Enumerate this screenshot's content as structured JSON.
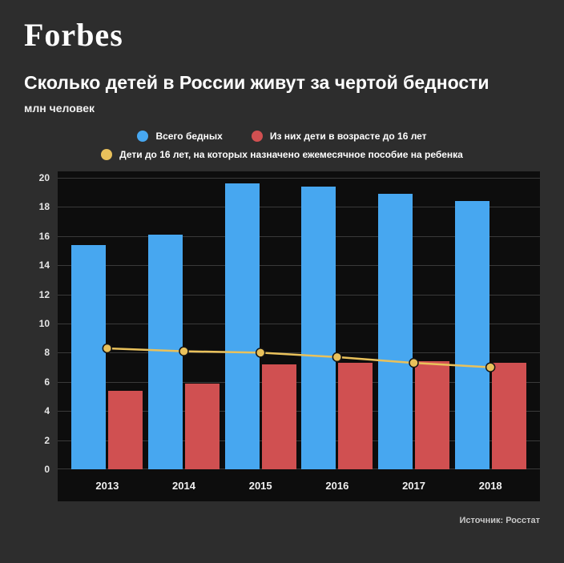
{
  "logo": "Forbes",
  "title": "Сколько детей в России живут за чертой бедности",
  "subtitle": "млн человек",
  "legend": [
    {
      "label": "Всего бедных",
      "color": "#47a7f0"
    },
    {
      "label": "Из них дети в возрасте до 16 лет",
      "color": "#d05051"
    },
    {
      "label": "Дети до 16 лет, на которых назначено ежемесячное пособие на ребенка",
      "color": "#e9c15b"
    }
  ],
  "source": "Источник: Росстат",
  "colors": {
    "background": "#2d2d2d",
    "plot_background": "#0d0d0d",
    "gridline": "#3a3a3a",
    "blue": "#47a7f0",
    "red": "#d05051",
    "yellow": "#e9c15b"
  },
  "chart_data": {
    "type": "bar",
    "title": "Сколько детей в России живут за чертой бедности",
    "subtitle": "млн человек",
    "categories": [
      "2013",
      "2014",
      "2015",
      "2016",
      "2017",
      "2018"
    ],
    "series": [
      {
        "name": "Всего бедных",
        "type": "bar",
        "color": "#47a7f0",
        "values": [
          15.4,
          16.1,
          19.6,
          19.4,
          18.9,
          18.4
        ]
      },
      {
        "name": "Из них дети в возрасте до 16 лет",
        "type": "bar",
        "color": "#d05051",
        "values": [
          5.4,
          5.9,
          7.2,
          7.3,
          7.4,
          7.3
        ]
      },
      {
        "name": "Дети до 16 лет, на которых назначено ежемесячное пособие на ребенка",
        "type": "line",
        "color": "#e9c15b",
        "values": [
          8.3,
          8.1,
          8.0,
          7.7,
          7.3,
          7.0
        ]
      }
    ],
    "xlabel": "",
    "ylabel": "млн человек",
    "ylim": [
      0,
      20
    ],
    "ytick_step": 2,
    "grid": true,
    "legend_position": "top"
  }
}
